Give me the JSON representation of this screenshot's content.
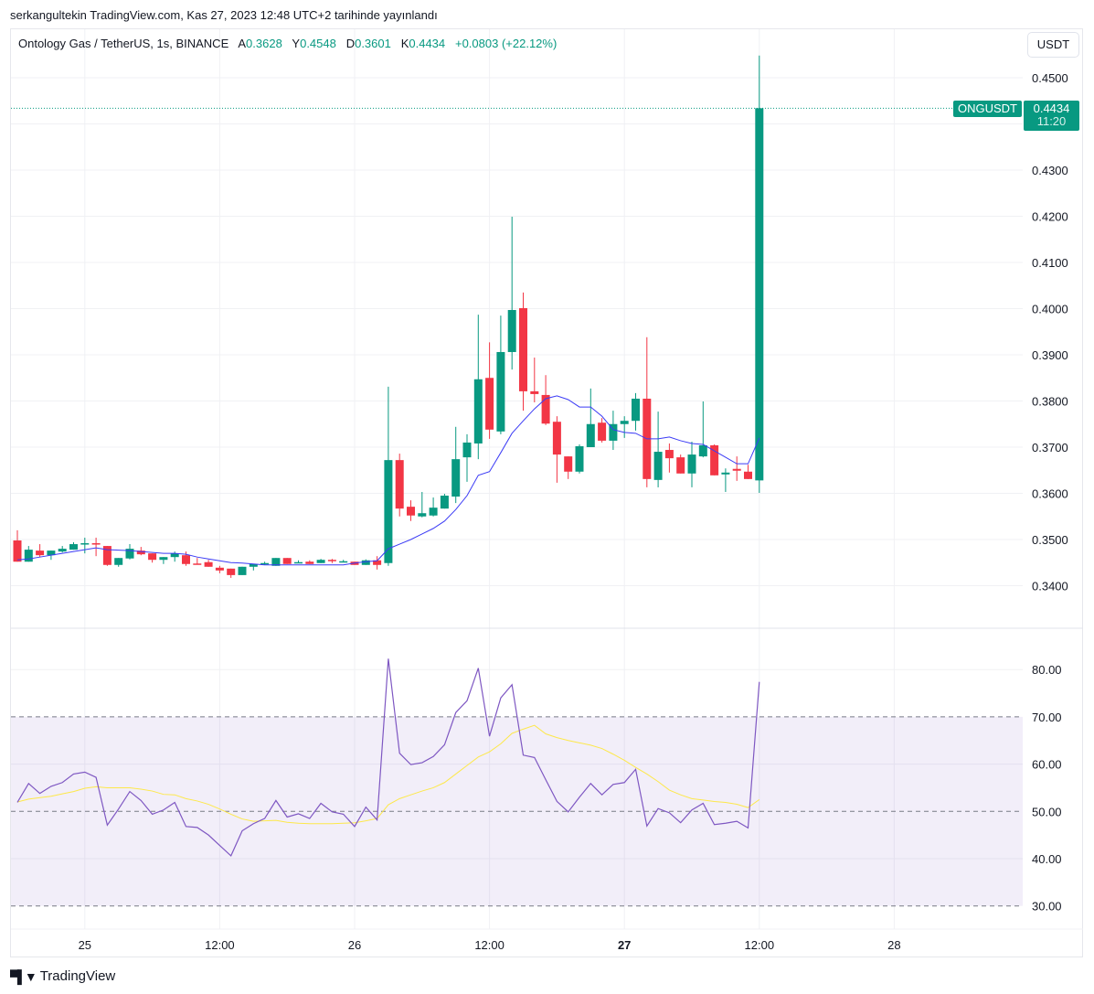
{
  "header": {
    "published": "serkangultekin TradingView.com, Kas 27, 2023 12:48 UTC+2 tarihinde yayınlandı"
  },
  "legend": {
    "symbol": "Ontology Gas / TetherUS, 1s, BINANCE",
    "open_label": "A",
    "open": "0.3628",
    "high_label": "Y",
    "high": "0.4548",
    "low_label": "D",
    "low": "0.3601",
    "close_label": "K",
    "close": "0.4434",
    "change": "+0.0803 (+22.12%)"
  },
  "currency_button": "USDT",
  "last_price": {
    "symbol": "ONGUSDT",
    "price": "0.4434",
    "countdown": "11:20"
  },
  "footer": {
    "logo_text": "TradingView"
  },
  "colors": {
    "up": "#089981",
    "down": "#f23645",
    "ma": "#3b3bf5",
    "rsi": "#7e57c2",
    "rsi_ma": "#fde84a"
  },
  "chart_data": [
    {
      "type": "candlestick",
      "title": "Ontology Gas / TetherUS, 1s, BINANCE",
      "ylim": [
        0.334,
        0.459
      ],
      "y_ticks": [
        "0.4500",
        "0.4300",
        "0.4200",
        "0.4100",
        "0.4000",
        "0.3900",
        "0.3800",
        "0.3700",
        "0.3600",
        "0.3500",
        "0.3400"
      ],
      "x_ticks": [
        {
          "i": 6,
          "label": "25",
          "bold": false
        },
        {
          "i": 18,
          "label": "12:00",
          "bold": false
        },
        {
          "i": 30,
          "label": "26",
          "bold": false
        },
        {
          "i": 42,
          "label": "12:00",
          "bold": false
        },
        {
          "i": 54,
          "label": "27",
          "bold": true
        },
        {
          "i": 66,
          "label": "12:00",
          "bold": false
        },
        {
          "i": 78,
          "label": "28",
          "bold": false
        }
      ],
      "ohlc": [
        [
          0.3498,
          0.352,
          0.3452,
          0.3452
        ],
        [
          0.3452,
          0.3486,
          0.3452,
          0.3478
        ],
        [
          0.3476,
          0.349,
          0.3462,
          0.3466
        ],
        [
          0.3466,
          0.3476,
          0.3456,
          0.3476
        ],
        [
          0.3474,
          0.3486,
          0.3472,
          0.348
        ],
        [
          0.3478,
          0.3494,
          0.3478,
          0.349
        ],
        [
          0.349,
          0.3504,
          0.347,
          0.3492
        ],
        [
          0.3492,
          0.3504,
          0.3464,
          0.349
        ],
        [
          0.3486,
          0.3486,
          0.3443,
          0.3445
        ],
        [
          0.3445,
          0.346,
          0.3441,
          0.346
        ],
        [
          0.3459,
          0.349,
          0.3457,
          0.348
        ],
        [
          0.3476,
          0.3484,
          0.3466,
          0.3468
        ],
        [
          0.347,
          0.347,
          0.345,
          0.3456
        ],
        [
          0.3456,
          0.3462,
          0.3447,
          0.3462
        ],
        [
          0.3462,
          0.3474,
          0.3452,
          0.347
        ],
        [
          0.3466,
          0.3474,
          0.3443,
          0.3447
        ],
        [
          0.3448,
          0.346,
          0.3447,
          0.3447
        ],
        [
          0.3451,
          0.3456,
          0.3441,
          0.3441
        ],
        [
          0.3439,
          0.3443,
          0.3427,
          0.3433
        ],
        [
          0.3437,
          0.3437,
          0.3417,
          0.3423
        ],
        [
          0.3423,
          0.3441,
          0.3423,
          0.3441
        ],
        [
          0.3441,
          0.3447,
          0.3433,
          0.3447
        ],
        [
          0.3447,
          0.3452,
          0.3445,
          0.3449
        ],
        [
          0.3443,
          0.346,
          0.3443,
          0.346
        ],
        [
          0.346,
          0.346,
          0.3447,
          0.3447
        ],
        [
          0.3449,
          0.3455,
          0.3449,
          0.3451
        ],
        [
          0.3452,
          0.3455,
          0.3447,
          0.3447
        ],
        [
          0.3449,
          0.3458,
          0.3449,
          0.3456
        ],
        [
          0.3456,
          0.3458,
          0.3449,
          0.3453
        ],
        [
          0.3452,
          0.3456,
          0.3452,
          0.3453
        ],
        [
          0.3452,
          0.3452,
          0.3445,
          0.3445
        ],
        [
          0.3445,
          0.3457,
          0.3445,
          0.3455
        ],
        [
          0.3455,
          0.3464,
          0.3435,
          0.3445
        ],
        [
          0.3449,
          0.3831,
          0.3443,
          0.3672
        ],
        [
          0.3672,
          0.3686,
          0.355,
          0.3567
        ],
        [
          0.3571,
          0.3585,
          0.354,
          0.3552
        ],
        [
          0.355,
          0.3603,
          0.3548,
          0.3557
        ],
        [
          0.3552,
          0.3591,
          0.355,
          0.3569
        ],
        [
          0.3567,
          0.3599,
          0.3567,
          0.3595
        ],
        [
          0.3593,
          0.3744,
          0.3579,
          0.3674
        ],
        [
          0.3678,
          0.3728,
          0.3625,
          0.371
        ],
        [
          0.3708,
          0.3987,
          0.3674,
          0.3847
        ],
        [
          0.385,
          0.3927,
          0.3718,
          0.3738
        ],
        [
          0.3734,
          0.3985,
          0.3728,
          0.3906
        ],
        [
          0.3906,
          0.4199,
          0.3868,
          0.3997
        ],
        [
          0.4001,
          0.4035,
          0.3779,
          0.3821
        ],
        [
          0.3821,
          0.3894,
          0.3797,
          0.3815
        ],
        [
          0.3813,
          0.3856,
          0.3748,
          0.3751
        ],
        [
          0.3755,
          0.3767,
          0.3623,
          0.3684
        ],
        [
          0.368,
          0.368,
          0.3631,
          0.3647
        ],
        [
          0.3647,
          0.3706,
          0.3643,
          0.3702
        ],
        [
          0.37,
          0.3827,
          0.37,
          0.375
        ],
        [
          0.3753,
          0.3763,
          0.371,
          0.3714
        ],
        [
          0.3714,
          0.3779,
          0.3694,
          0.375
        ],
        [
          0.375,
          0.3767,
          0.372,
          0.3757
        ],
        [
          0.3757,
          0.3817,
          0.3736,
          0.3805
        ],
        [
          0.3805,
          0.3938,
          0.3613,
          0.3631
        ],
        [
          0.3629,
          0.3777,
          0.3613,
          0.369
        ],
        [
          0.3694,
          0.3708,
          0.3645,
          0.3676
        ],
        [
          0.3678,
          0.3684,
          0.3643,
          0.3643
        ],
        [
          0.3643,
          0.3712,
          0.3613,
          0.3684
        ],
        [
          0.368,
          0.3799,
          0.3678,
          0.3704
        ],
        [
          0.3704,
          0.3706,
          0.3639,
          0.3639
        ],
        [
          0.3641,
          0.3654,
          0.3603,
          0.3645
        ],
        [
          0.3653,
          0.368,
          0.3627,
          0.3649
        ],
        [
          0.3647,
          0.3662,
          0.3631,
          0.3631
        ],
        [
          0.3628,
          0.4548,
          0.3601,
          0.4434
        ]
      ],
      "ma": [
        0.3456,
        0.3458,
        0.3462,
        0.3466,
        0.347,
        0.3474,
        0.3478,
        0.3482,
        0.3478,
        0.3477,
        0.3476,
        0.3474,
        0.3472,
        0.347,
        0.347,
        0.3468,
        0.3462,
        0.3458,
        0.3454,
        0.345,
        0.3449,
        0.3447,
        0.3445,
        0.3445,
        0.3445,
        0.3445,
        0.3445,
        0.3445,
        0.3445,
        0.3445,
        0.3449,
        0.3452,
        0.3454,
        0.348,
        0.349,
        0.35,
        0.3512,
        0.3524,
        0.354,
        0.3565,
        0.3595,
        0.3639,
        0.3647,
        0.3688,
        0.373,
        0.3757,
        0.3783,
        0.3805,
        0.3811,
        0.3803,
        0.3787,
        0.3787,
        0.3767,
        0.3738,
        0.3732,
        0.373,
        0.3718,
        0.3718,
        0.3722,
        0.3714,
        0.3708,
        0.3706,
        0.3692,
        0.3678,
        0.3664,
        0.3664,
        0.372
      ]
    },
    {
      "type": "line",
      "title": "RSI",
      "ylim": [
        26,
        86
      ],
      "y_ticks": [
        "80.00",
        "70.00",
        "60.00",
        "50.00",
        "40.00",
        "30.00"
      ],
      "bands": {
        "upper": 70,
        "middle": 50,
        "lower": 30
      },
      "series": [
        {
          "name": "RSI",
          "values": [
            51.9,
            55.9,
            53.8,
            55.3,
            56.1,
            57.9,
            58.3,
            57.2,
            47.1,
            50.5,
            54.2,
            52.3,
            49.4,
            50.3,
            51.9,
            46.8,
            46.6,
            45.0,
            42.8,
            40.6,
            45.9,
            47.4,
            48.5,
            52.3,
            48.8,
            49.5,
            48.5,
            51.7,
            49.9,
            49.4,
            46.8,
            50.9,
            48.2,
            82.3,
            62.3,
            59.9,
            60.3,
            61.6,
            64.1,
            70.9,
            73.4,
            80.3,
            65.9,
            74.0,
            76.8,
            61.9,
            61.4,
            56.7,
            52.1,
            49.9,
            53.0,
            55.9,
            53.5,
            55.7,
            56.1,
            58.9,
            46.9,
            50.6,
            49.7,
            47.6,
            50.3,
            51.7,
            47.2,
            47.5,
            47.9,
            46.5,
            77.4
          ]
        },
        {
          "name": "RSI MA",
          "values": [
            52.0,
            52.6,
            52.9,
            53.2,
            53.7,
            54.2,
            54.9,
            55.2,
            55.0,
            55.0,
            55.0,
            54.7,
            54.3,
            53.6,
            53.5,
            52.7,
            52.2,
            51.5,
            50.5,
            49.4,
            48.4,
            47.9,
            48.0,
            48.1,
            47.7,
            47.5,
            47.4,
            47.4,
            47.4,
            47.5,
            47.6,
            48.0,
            48.5,
            51.4,
            52.7,
            53.5,
            54.3,
            55.0,
            56.1,
            57.9,
            59.7,
            61.5,
            62.6,
            64.3,
            66.5,
            67.4,
            68.2,
            66.4,
            65.6,
            65.0,
            64.5,
            64.0,
            63.3,
            62.1,
            60.8,
            59.3,
            57.9,
            56.3,
            54.5,
            53.5,
            52.7,
            52.4,
            52.1,
            51.9,
            51.5,
            50.8,
            52.5
          ]
        }
      ]
    }
  ]
}
